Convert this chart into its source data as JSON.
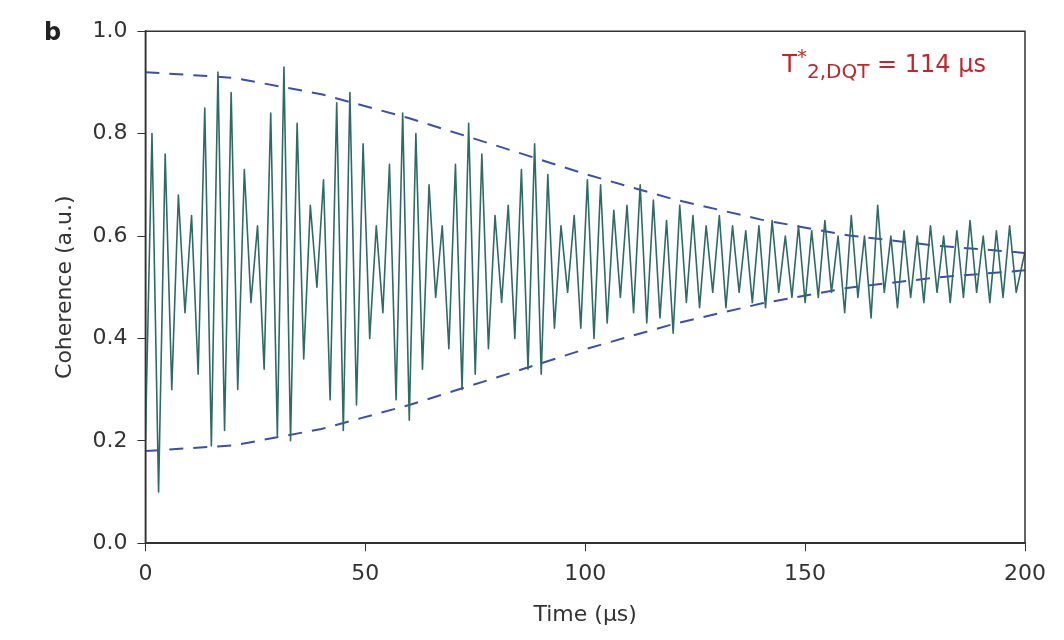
{
  "chart_data": {
    "type": "line",
    "xlabel": "Time (μs)",
    "ylabel": "Coherence (a.u.)",
    "xlim": [
      0,
      200
    ],
    "xticks": [
      0,
      50,
      100,
      150,
      200
    ],
    "ylim": [
      0,
      1
    ],
    "yticks": [
      {
        "value": 0,
        "label": "0.0"
      },
      {
        "value": 0.2,
        "label": "0.2"
      },
      {
        "value": 0.4,
        "label": "0.4"
      },
      {
        "value": 0.6,
        "label": "0.6"
      },
      {
        "value": 0.8,
        "label": "0.8"
      },
      {
        "value": 1,
        "label": "1.0"
      }
    ],
    "grid": false,
    "legend": false,
    "marker": "none",
    "annotations": [
      "b",
      "T$^{*}$$_{2,DQT}$ = 114 μs"
    ],
    "series": [
      {
        "color": "#2f6b66",
        "line_style": "solid",
        "x": [
          0,
          1.5,
          3,
          4.5,
          6,
          7.5,
          9,
          10.5,
          12,
          13.5,
          15,
          16.5,
          18,
          19.5,
          21,
          22.5,
          24,
          25.5,
          27,
          28.5,
          30,
          31.5,
          33,
          34.5,
          36,
          37.5,
          39,
          40.5,
          42,
          43.5,
          45,
          46.5,
          48,
          49.5,
          51,
          52.5,
          54,
          55.5,
          57,
          58.5,
          60,
          61.5,
          63,
          64.5,
          66,
          67.5,
          69,
          70.5,
          72,
          73.5,
          75,
          76.5,
          78,
          79.5,
          81,
          82.5,
          84,
          85.5,
          87,
          88.5,
          90,
          91.5,
          93,
          94.5,
          96,
          97.5,
          99,
          100.5,
          102,
          103.5,
          105,
          106.5,
          108,
          109.5,
          111,
          112.5,
          114,
          115.5,
          117,
          118.5,
          120,
          121.5,
          123,
          124.5,
          126,
          127.5,
          129,
          130.5,
          132,
          133.5,
          135,
          136.5,
          138,
          139.5,
          141,
          142.5,
          144,
          145.5,
          147,
          148.5,
          150,
          151.5,
          153,
          154.5,
          156,
          157.5,
          159,
          160.5,
          162,
          163.5,
          165,
          166.5,
          168,
          169.5,
          171,
          172.5,
          174,
          175.5,
          177,
          178.5,
          180,
          181.5,
          183,
          184.5,
          186,
          187.5,
          189,
          190.5,
          192,
          193.5,
          195,
          196.5,
          198,
          200
        ],
        "values": [
          0.2,
          0.8,
          0.1,
          0.76,
          0.3,
          0.68,
          0.45,
          0.64,
          0.33,
          0.85,
          0.19,
          0.92,
          0.22,
          0.88,
          0.3,
          0.73,
          0.47,
          0.62,
          0.34,
          0.84,
          0.21,
          0.93,
          0.2,
          0.82,
          0.36,
          0.66,
          0.5,
          0.71,
          0.28,
          0.86,
          0.22,
          0.88,
          0.27,
          0.78,
          0.4,
          0.62,
          0.45,
          0.74,
          0.28,
          0.84,
          0.24,
          0.8,
          0.34,
          0.7,
          0.48,
          0.62,
          0.38,
          0.74,
          0.3,
          0.82,
          0.33,
          0.76,
          0.38,
          0.64,
          0.47,
          0.66,
          0.4,
          0.73,
          0.34,
          0.78,
          0.33,
          0.72,
          0.42,
          0.62,
          0.49,
          0.64,
          0.42,
          0.71,
          0.4,
          0.7,
          0.43,
          0.65,
          0.48,
          0.66,
          0.45,
          0.7,
          0.43,
          0.67,
          0.44,
          0.63,
          0.41,
          0.66,
          0.47,
          0.64,
          0.46,
          0.62,
          0.49,
          0.64,
          0.46,
          0.62,
          0.49,
          0.61,
          0.47,
          0.62,
          0.46,
          0.63,
          0.49,
          0.6,
          0.48,
          0.62,
          0.47,
          0.61,
          0.48,
          0.63,
          0.49,
          0.6,
          0.45,
          0.64,
          0.48,
          0.6,
          0.44,
          0.66,
          0.49,
          0.6,
          0.46,
          0.61,
          0.48,
          0.6,
          0.47,
          0.62,
          0.49,
          0.6,
          0.47,
          0.61,
          0.48,
          0.63,
          0.49,
          0.6,
          0.47,
          0.61,
          0.48,
          0.62,
          0.49,
          0.57
        ]
      },
      {
        "color": "#3a4fb0",
        "line_style": "dashed",
        "x": [
          0,
          20,
          40,
          60,
          80,
          100,
          120,
          140,
          160,
          180,
          200
        ],
        "values": [
          0.92,
          0.909,
          0.877,
          0.83,
          0.776,
          0.721,
          0.672,
          0.632,
          0.601,
          0.581,
          0.567
        ]
      },
      {
        "color": "#3a4fb0",
        "line_style": "dashed",
        "x": [
          0,
          20,
          40,
          60,
          80,
          100,
          120,
          140,
          160,
          180,
          200
        ],
        "values": [
          0.18,
          0.191,
          0.223,
          0.27,
          0.324,
          0.379,
          0.428,
          0.468,
          0.499,
          0.519,
          0.533
        ]
      }
    ]
  }
}
